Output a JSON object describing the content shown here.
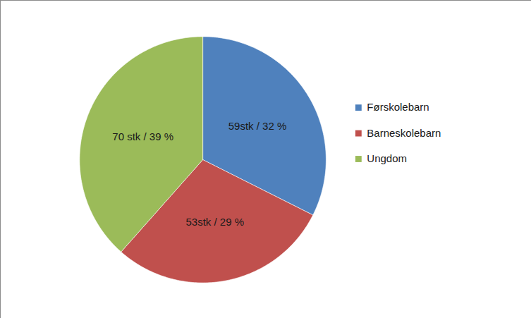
{
  "chart_data": {
    "type": "pie",
    "categories": [
      "Førskolebarn",
      "Barneskolebarn",
      "Ungdom"
    ],
    "values": [
      59,
      53,
      70
    ],
    "value_labels": [
      "59stk / 32 %",
      "53stk / 29 %",
      "70 stk / 39 %"
    ],
    "colors": [
      "#4f81bd",
      "#c0504d",
      "#9bbb59"
    ],
    "data_labels": true,
    "legend": "right"
  }
}
